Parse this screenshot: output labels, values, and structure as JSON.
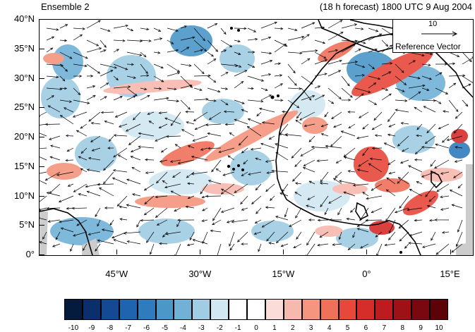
{
  "header": {
    "title_left": "Ensemble 2",
    "title_right": "(18 h forecast) 1800 UTC 9 Aug 2004"
  },
  "map": {
    "lat_labels": [
      "40°N",
      "35°N",
      "30°N",
      "25°N",
      "20°N",
      "15°N",
      "10°N",
      "5°N",
      "0°"
    ],
    "lon_labels": [
      "45°W",
      "30°W",
      "15°W",
      "0°",
      "15°E"
    ],
    "lat_values": [
      40,
      35,
      30,
      25,
      20,
      15,
      10,
      5,
      0
    ],
    "lon_values": [
      -45,
      -30,
      -15,
      0,
      15
    ],
    "lat_range": [
      0,
      40
    ],
    "lon_range": [
      -59,
      19
    ],
    "coast_color": "#000000",
    "vector_color": "#000000"
  },
  "reference_vector": {
    "magnitude": "10",
    "label": "Reference Vector"
  },
  "colorbar": {
    "labels": [
      "-10",
      "-9",
      "-8",
      "-7",
      "-6",
      "-5",
      "-4",
      "-3",
      "-2",
      "-1",
      "0",
      "1",
      "2",
      "3",
      "4",
      "5",
      "6",
      "7",
      "8",
      "9",
      "10"
    ],
    "colors": [
      "#041b3d",
      "#0b2f6b",
      "#134a93",
      "#1f64ae",
      "#2f7bbd",
      "#4b97c8",
      "#71b1d6",
      "#a0cde4",
      "#d1e7f2",
      "#ffffff",
      "#ffffff",
      "#fbdcd8",
      "#f7b9ad",
      "#f5957f",
      "#f0715a",
      "#e8483a",
      "#d62d2a",
      "#bc1b21",
      "#9d1117",
      "#7a0810",
      "#5c0209"
    ]
  }
}
